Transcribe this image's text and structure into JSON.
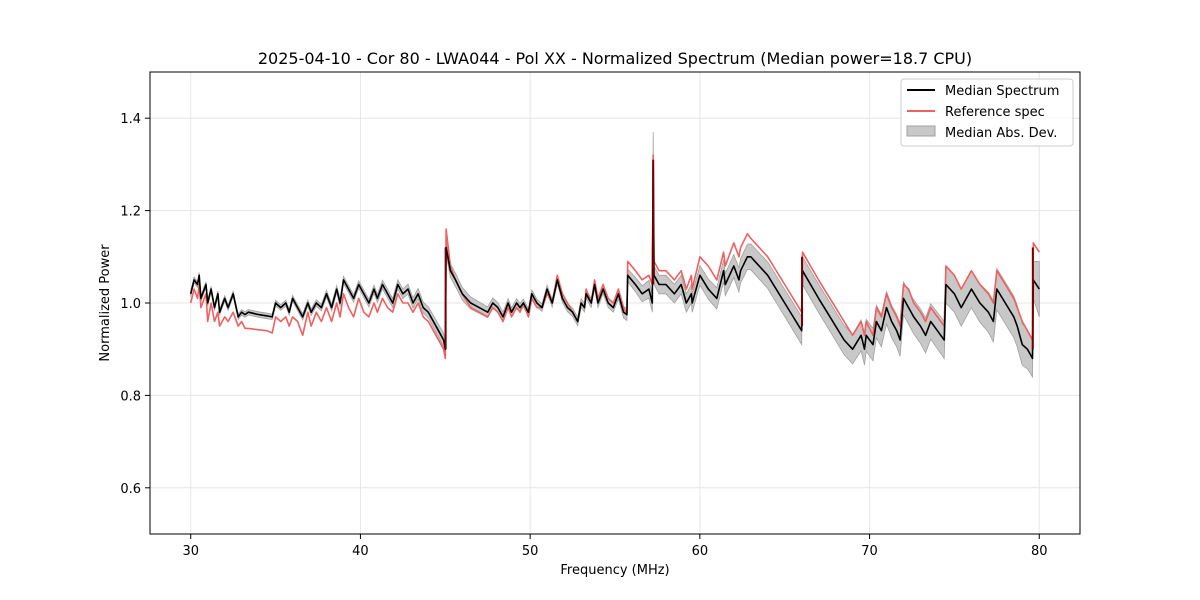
{
  "chart_data": {
    "type": "line",
    "title": "2025-04-10 - Cor 80 - LWA044 - Pol XX - Normalized Spectrum (Median power=18.7 CPU)",
    "xlabel": "Frequency (MHz)",
    "ylabel": "Normalized Power",
    "xlim": [
      27.6,
      82.4
    ],
    "ylim": [
      0.5,
      1.5
    ],
    "xticks": [
      30,
      40,
      50,
      60,
      70,
      80
    ],
    "yticks": [
      0.6,
      0.8,
      1.0,
      1.2,
      1.4
    ],
    "xtick_labels": [
      "30",
      "40",
      "50",
      "60",
      "70",
      "80"
    ],
    "ytick_labels": [
      "0.6",
      "0.8",
      "1.0",
      "1.2",
      "1.4"
    ],
    "grid": true,
    "legend_position": "top-right",
    "legend": [
      "Median Spectrum",
      "Reference spec",
      "Median Abs. Dev."
    ],
    "colors": {
      "median": "#000000",
      "reference": "#f06060",
      "mad_fill": "#c8c8c8",
      "mad_edge": "#a0a0a0",
      "overlap": "#7a0000"
    },
    "series": [
      {
        "name": "Median Spectrum",
        "x": [
          30.0,
          30.2,
          30.4,
          30.5,
          30.6,
          30.9,
          31.0,
          31.2,
          31.4,
          31.6,
          31.7,
          32.0,
          32.2,
          32.5,
          32.8,
          33.0,
          33.2,
          33.4,
          34.0,
          34.5,
          34.8,
          35.0,
          35.3,
          35.6,
          35.8,
          36.0,
          36.3,
          36.6,
          36.9,
          37.1,
          37.4,
          37.7,
          38.0,
          38.3,
          38.6,
          38.8,
          39.0,
          39.3,
          39.6,
          39.9,
          40.2,
          40.5,
          40.8,
          41.0,
          41.3,
          41.6,
          41.9,
          42.2,
          42.5,
          42.8,
          43.1,
          43.4,
          43.7,
          44.0,
          44.3,
          44.6,
          44.9,
          45.0,
          45.05,
          45.3,
          45.6,
          46.0,
          46.5,
          47.0,
          47.5,
          47.8,
          48.1,
          48.4,
          48.7,
          48.9,
          49.2,
          49.4,
          49.6,
          49.9,
          50.1,
          50.4,
          50.7,
          51.0,
          51.3,
          51.6,
          51.9,
          52.2,
          52.5,
          52.8,
          53.0,
          53.2,
          53.3,
          53.6,
          53.8,
          54.0,
          54.3,
          54.6,
          54.9,
          55.2,
          55.5,
          55.7,
          55.75,
          56.2,
          56.6,
          57.0,
          57.2,
          57.25,
          57.3,
          57.6,
          58.0,
          58.5,
          58.9,
          59.2,
          59.5,
          59.55,
          60.0,
          60.5,
          61.0,
          61.4,
          61.5,
          62.0,
          62.3,
          62.4,
          62.8,
          63.0,
          64.0,
          65.0,
          66.0,
          66.05,
          67.0,
          67.5,
          68.0,
          68.5,
          69.0,
          69.5,
          69.7,
          69.8,
          70.2,
          70.4,
          70.7,
          71.0,
          71.3,
          71.6,
          71.8,
          72.0,
          72.3,
          72.6,
          73.0,
          73.3,
          73.6,
          74.0,
          74.4,
          74.5,
          75.0,
          75.4,
          76.0,
          76.5,
          77.0,
          77.3,
          77.5,
          78.0,
          78.5,
          78.7,
          79.0,
          79.3,
          79.6,
          79.65,
          80.0
        ],
        "values": [
          1.02,
          1.05,
          1.04,
          1.06,
          1.01,
          1.04,
          1.0,
          1.03,
          0.99,
          1.02,
          0.98,
          1.01,
          0.99,
          1.02,
          0.97,
          0.98,
          0.975,
          0.98,
          0.975,
          0.972,
          0.97,
          1.0,
          0.99,
          1.0,
          0.98,
          1.01,
          0.99,
          0.97,
          1.0,
          0.98,
          1.0,
          0.99,
          1.02,
          0.99,
          1.03,
          1.0,
          1.05,
          1.03,
          1.01,
          1.04,
          1.02,
          1.0,
          1.03,
          1.01,
          1.04,
          1.02,
          1.0,
          1.04,
          1.02,
          1.03,
          1.0,
          1.02,
          0.99,
          0.98,
          0.96,
          0.94,
          0.92,
          0.9,
          1.12,
          1.07,
          1.05,
          1.02,
          1.0,
          0.99,
          0.98,
          1.0,
          0.99,
          0.97,
          1.0,
          0.98,
          1.0,
          0.99,
          1.0,
          0.98,
          1.02,
          1.0,
          0.99,
          1.03,
          1.0,
          1.05,
          1.01,
          0.99,
          0.98,
          0.96,
          1.0,
          0.99,
          1.02,
          1.0,
          1.04,
          1.0,
          1.03,
          1.0,
          0.99,
          1.02,
          0.98,
          0.975,
          1.06,
          1.04,
          1.02,
          1.03,
          1.0,
          1.3,
          1.06,
          1.04,
          1.04,
          1.02,
          1.04,
          1.0,
          1.02,
          1.0,
          1.06,
          1.03,
          1.01,
          1.07,
          1.04,
          1.08,
          1.05,
          1.07,
          1.1,
          1.1,
          1.06,
          1.0,
          0.94,
          1.07,
          1.01,
          0.98,
          0.95,
          0.92,
          0.9,
          0.93,
          0.9,
          0.93,
          0.91,
          0.96,
          0.94,
          0.99,
          0.96,
          0.94,
          0.92,
          1.01,
          0.99,
          0.97,
          0.95,
          0.93,
          0.96,
          0.94,
          0.92,
          1.04,
          1.02,
          0.99,
          1.03,
          1.0,
          0.98,
          0.96,
          1.03,
          1.0,
          0.97,
          0.95,
          0.91,
          0.9,
          0.88,
          1.05,
          1.03
        ]
      },
      {
        "name": "Reference spec",
        "x": [
          30.0,
          30.2,
          30.4,
          30.5,
          30.6,
          30.9,
          31.0,
          31.2,
          31.4,
          31.6,
          31.7,
          32.0,
          32.2,
          32.5,
          32.8,
          33.0,
          33.2,
          33.4,
          34.0,
          34.5,
          34.8,
          35.0,
          35.3,
          35.6,
          35.8,
          36.0,
          36.3,
          36.6,
          36.9,
          37.1,
          37.4,
          37.7,
          38.0,
          38.3,
          38.6,
          38.8,
          39.0,
          39.3,
          39.6,
          39.9,
          40.2,
          40.5,
          40.8,
          41.0,
          41.3,
          41.6,
          41.9,
          42.2,
          42.5,
          42.8,
          43.1,
          43.4,
          43.7,
          44.0,
          44.3,
          44.6,
          44.9,
          45.0,
          45.05,
          45.3,
          45.6,
          46.0,
          46.5,
          47.0,
          47.5,
          47.8,
          48.1,
          48.4,
          48.7,
          48.9,
          49.2,
          49.4,
          49.6,
          49.9,
          50.1,
          50.4,
          50.7,
          51.0,
          51.3,
          51.6,
          51.9,
          52.2,
          52.5,
          52.8,
          53.0,
          53.2,
          53.3,
          53.6,
          53.8,
          54.0,
          54.3,
          54.6,
          54.9,
          55.2,
          55.5,
          55.7,
          55.75,
          56.2,
          56.6,
          57.0,
          57.2,
          57.25,
          57.3,
          57.6,
          58.0,
          58.5,
          58.9,
          59.2,
          59.5,
          59.55,
          60.0,
          60.5,
          61.0,
          61.4,
          61.5,
          62.0,
          62.3,
          62.4,
          62.8,
          63.0,
          64.0,
          65.0,
          66.0,
          66.05,
          67.0,
          67.5,
          68.0,
          68.5,
          69.0,
          69.5,
          69.7,
          69.8,
          70.2,
          70.4,
          70.7,
          71.0,
          71.3,
          71.6,
          71.8,
          72.0,
          72.3,
          72.6,
          73.0,
          73.3,
          73.6,
          74.0,
          74.4,
          74.5,
          75.0,
          75.4,
          76.0,
          76.5,
          77.0,
          77.3,
          77.5,
          78.0,
          78.5,
          78.7,
          79.0,
          79.3,
          79.6,
          79.65,
          80.0
        ],
        "values": [
          1.0,
          1.03,
          1.01,
          1.04,
          0.99,
          1.02,
          0.96,
          1.0,
          0.96,
          0.98,
          0.95,
          0.97,
          0.96,
          0.98,
          0.95,
          0.96,
          0.945,
          0.945,
          0.942,
          0.94,
          0.935,
          0.97,
          0.96,
          0.97,
          0.95,
          0.97,
          0.96,
          0.93,
          0.98,
          0.95,
          0.98,
          0.96,
          0.99,
          0.96,
          1.0,
          0.97,
          1.02,
          0.99,
          0.97,
          1.01,
          0.98,
          0.97,
          1.0,
          0.98,
          1.01,
          0.99,
          0.98,
          1.02,
          1.0,
          1.0,
          0.98,
          1.0,
          0.97,
          0.96,
          0.94,
          0.92,
          0.9,
          0.88,
          1.16,
          1.08,
          1.05,
          1.02,
          0.99,
          0.98,
          0.97,
          0.99,
          0.98,
          0.96,
          0.99,
          0.97,
          0.99,
          0.98,
          1.0,
          0.97,
          1.01,
          0.99,
          0.99,
          1.02,
          1.0,
          1.06,
          1.02,
          1.0,
          0.98,
          0.96,
          1.0,
          0.99,
          1.03,
          1.0,
          1.05,
          1.01,
          1.04,
          1.01,
          1.0,
          1.03,
          0.99,
          0.975,
          1.09,
          1.07,
          1.05,
          1.06,
          1.04,
          1.32,
          1.09,
          1.07,
          1.07,
          1.05,
          1.07,
          1.03,
          1.06,
          1.03,
          1.1,
          1.08,
          1.05,
          1.11,
          1.08,
          1.13,
          1.1,
          1.12,
          1.15,
          1.14,
          1.1,
          1.04,
          0.98,
          1.11,
          1.05,
          1.02,
          0.99,
          0.96,
          0.93,
          0.96,
          0.93,
          0.96,
          0.93,
          0.99,
          0.97,
          1.02,
          0.99,
          0.97,
          0.95,
          1.04,
          1.03,
          1.0,
          0.98,
          0.96,
          0.99,
          0.97,
          0.95,
          1.08,
          1.06,
          1.03,
          1.07,
          1.04,
          1.02,
          1.0,
          1.07,
          1.04,
          1.01,
          0.99,
          0.96,
          0.94,
          0.92,
          1.13,
          1.11
        ]
      }
    ],
    "mad_band": {
      "name": "Median Abs. Dev.",
      "x": [
        30.0,
        35.0,
        40.0,
        44.0,
        45.0,
        45.05,
        50.0,
        55.0,
        57.2,
        57.25,
        57.3,
        59.5,
        62.0,
        63.0,
        66.0,
        66.05,
        69.0,
        70.0,
        71.5,
        71.55,
        71.6,
        74.5,
        76.0,
        77.5,
        79.0,
        79.6,
        79.65,
        80.0
      ],
      "halfwidth": [
        0.006,
        0.006,
        0.008,
        0.012,
        0.015,
        0.015,
        0.008,
        0.01,
        0.02,
        0.07,
        0.02,
        0.02,
        0.025,
        0.028,
        0.03,
        0.03,
        0.032,
        0.035,
        0.035,
        0.045,
        0.035,
        0.04,
        0.04,
        0.045,
        0.045,
        0.04,
        0.04,
        0.06
      ]
    }
  }
}
